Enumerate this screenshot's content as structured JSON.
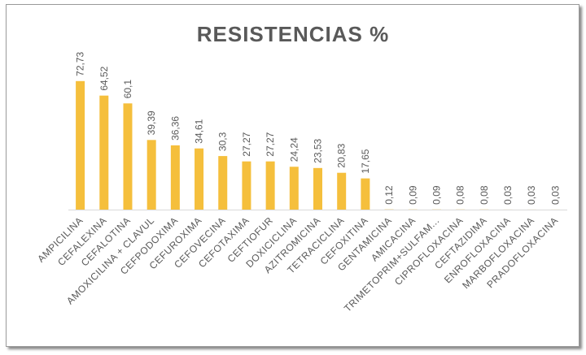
{
  "chart_data": {
    "type": "bar",
    "title": "RESISTENCIAS %",
    "categories": [
      "AMPICILINA",
      "CEFALEXINA",
      "CEFALOTINA",
      "AMOXICILINA + CLAVUL",
      "CEFPODOXIMA",
      "CEFUROXIMA",
      "CEFOVECINA",
      "CEFOTAXIMA",
      "CEFTIOFUR",
      "DOXICICLINA",
      "AZITROMICINA",
      "TETRACICLINA",
      "CEFOXITINA",
      "GENTAMICINA",
      "AMICACINA",
      "TRIMETOPRIM+SULFAM...",
      "CIPROFLOXACINA",
      "CEFTAZIDIMA",
      "ENROFLOXACINA",
      "MARBOFLOXACINA",
      "PRADOFLOXACINA"
    ],
    "values": [
      72.73,
      64.52,
      60.1,
      39.39,
      36.36,
      34.61,
      30.3,
      27.27,
      27.27,
      24.24,
      23.53,
      20.83,
      17.65,
      0.12,
      0.09,
      0.09,
      0.08,
      0.08,
      0.03,
      0.03,
      0.03
    ],
    "value_labels": [
      "72,73",
      "64,52",
      "60,1",
      "39,39",
      "36,36",
      "34,61",
      "30,3",
      "27,27",
      "27,27",
      "24,24",
      "23,53",
      "20,83",
      "17,65",
      "0,12",
      "0,09",
      "0,09",
      "0,08",
      "0,08",
      "0,03",
      "0,03",
      "0,03"
    ],
    "xlabel": "",
    "ylabel": "",
    "ylim": [
      0,
      80
    ],
    "grid": false,
    "legend": "none",
    "colors": {
      "bar": "#F5BF3C",
      "text": "#595959",
      "axis": "#D9D9D9"
    }
  }
}
